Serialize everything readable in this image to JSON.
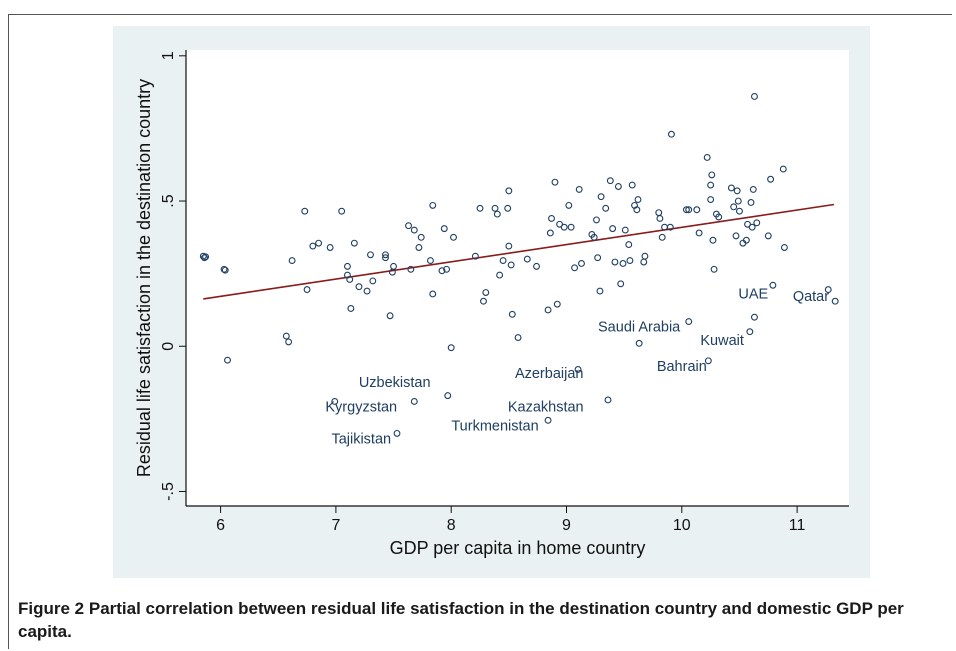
{
  "caption": {
    "label": "Figure 2",
    "text": "Partial correlation between residual life satisfaction in the destination country and domestic GDP per capita."
  },
  "colors": {
    "panel_background": "#eaf1f3",
    "marker": "#1e3e62",
    "fit_line": "#8b1a1a",
    "label_text": "#1e3e62"
  },
  "chart_data": {
    "type": "scatter",
    "title": "",
    "xlabel": "GDP per capita in home country",
    "ylabel": "Residual life satisfaction in the destination country",
    "xlim": [
      5.7,
      11.45
    ],
    "ylim": [
      -0.55,
      1.02
    ],
    "xticks": [
      6,
      7,
      8,
      9,
      10,
      11
    ],
    "xtick_labels": [
      "6",
      "7",
      "8",
      "9",
      "10",
      "11"
    ],
    "yticks": [
      -0.5,
      0,
      0.5,
      1
    ],
    "ytick_labels": [
      "-.5",
      "0",
      ".5",
      "1"
    ],
    "grid": false,
    "legend": "none",
    "fit_line": {
      "x": [
        5.85,
        11.32
      ],
      "y": [
        0.163,
        0.488
      ]
    },
    "points": [
      [
        5.85,
        0.31
      ],
      [
        5.86,
        0.305
      ],
      [
        5.87,
        0.308
      ],
      [
        6.03,
        0.265
      ],
      [
        6.04,
        0.262
      ],
      [
        6.06,
        -0.048
      ],
      [
        6.57,
        0.035
      ],
      [
        6.59,
        0.015
      ],
      [
        6.62,
        0.295
      ],
      [
        6.73,
        0.465
      ],
      [
        6.75,
        0.195
      ],
      [
        6.8,
        0.345
      ],
      [
        6.85,
        0.355
      ],
      [
        6.95,
        0.34
      ],
      [
        7.05,
        0.465
      ],
      [
        7.1,
        0.275
      ],
      [
        7.1,
        0.245
      ],
      [
        7.12,
        0.23
      ],
      [
        7.13,
        0.13
      ],
      [
        7.16,
        0.355
      ],
      [
        7.2,
        0.205
      ],
      [
        7.27,
        0.19
      ],
      [
        7.3,
        0.315
      ],
      [
        7.32,
        0.225
      ],
      [
        7.43,
        0.315
      ],
      [
        7.43,
        0.305
      ],
      [
        7.47,
        0.105
      ],
      [
        7.49,
        0.255
      ],
      [
        7.5,
        0.275
      ],
      [
        7.63,
        0.415
      ],
      [
        7.65,
        0.265
      ],
      [
        7.68,
        0.4
      ],
      [
        7.72,
        0.34
      ],
      [
        7.74,
        0.375
      ],
      [
        7.82,
        0.295
      ],
      [
        7.84,
        0.485
      ],
      [
        7.84,
        0.18
      ],
      [
        7.92,
        0.26
      ],
      [
        7.94,
        0.405
      ],
      [
        7.96,
        0.265
      ],
      [
        8.02,
        0.375
      ],
      [
        8.21,
        0.31
      ],
      [
        8.25,
        0.475
      ],
      [
        8.28,
        0.155
      ],
      [
        8.3,
        0.185
      ],
      [
        8.38,
        0.475
      ],
      [
        8.4,
        0.455
      ],
      [
        8.42,
        0.245
      ],
      [
        8.45,
        0.295
      ],
      [
        8.49,
        0.475
      ],
      [
        8.5,
        0.345
      ],
      [
        8.5,
        0.535
      ],
      [
        8.52,
        0.28
      ],
      [
        8.53,
        0.11
      ],
      [
        8.58,
        0.03
      ],
      [
        8.66,
        0.3
      ],
      [
        8.74,
        0.275
      ],
      [
        8.84,
        0.125
      ],
      [
        8.86,
        0.39
      ],
      [
        8.87,
        0.44
      ],
      [
        8.9,
        0.565
      ],
      [
        8.92,
        0.145
      ],
      [
        8.94,
        0.42
      ],
      [
        8.98,
        0.41
      ],
      [
        9.02,
        0.485
      ],
      [
        9.04,
        0.41
      ],
      [
        9.07,
        0.27
      ],
      [
        9.11,
        0.54
      ],
      [
        9.13,
        0.285
      ],
      [
        9.22,
        0.385
      ],
      [
        9.24,
        0.375
      ],
      [
        9.26,
        0.435
      ],
      [
        9.27,
        0.305
      ],
      [
        9.29,
        0.19
      ],
      [
        9.3,
        0.515
      ],
      [
        9.34,
        0.475
      ],
      [
        9.38,
        0.57
      ],
      [
        9.4,
        0.405
      ],
      [
        9.42,
        0.29
      ],
      [
        9.45,
        0.55
      ],
      [
        9.47,
        0.215
      ],
      [
        9.49,
        0.285
      ],
      [
        9.51,
        0.4
      ],
      [
        9.54,
        0.35
      ],
      [
        9.55,
        0.295
      ],
      [
        9.57,
        0.555
      ],
      [
        9.59,
        0.485
      ],
      [
        9.61,
        0.47
      ],
      [
        9.62,
        0.505
      ],
      [
        9.63,
        0.01
      ],
      [
        9.67,
        0.29
      ],
      [
        9.68,
        0.31
      ],
      [
        9.8,
        0.46
      ],
      [
        9.81,
        0.44
      ],
      [
        9.83,
        0.375
      ],
      [
        9.85,
        0.41
      ],
      [
        9.9,
        0.41
      ],
      [
        9.91,
        0.73
      ],
      [
        10.04,
        0.47
      ],
      [
        10.06,
        0.47
      ],
      [
        10.06,
        0.085
      ],
      [
        10.13,
        0.47
      ],
      [
        10.15,
        0.39
      ],
      [
        10.22,
        0.65
      ],
      [
        10.23,
        -0.05
      ],
      [
        10.25,
        0.505
      ],
      [
        10.25,
        0.555
      ],
      [
        10.26,
        0.59
      ],
      [
        10.27,
        0.365
      ],
      [
        10.28,
        0.265
      ],
      [
        10.3,
        0.455
      ],
      [
        10.32,
        0.445
      ],
      [
        10.43,
        0.545
      ],
      [
        10.45,
        0.48
      ],
      [
        10.47,
        0.38
      ],
      [
        10.48,
        0.535
      ],
      [
        10.49,
        0.5
      ],
      [
        10.5,
        0.465
      ],
      [
        10.53,
        0.355
      ],
      [
        10.56,
        0.365
      ],
      [
        10.57,
        0.42
      ],
      [
        10.59,
        0.05
      ],
      [
        10.6,
        0.495
      ],
      [
        10.61,
        0.41
      ],
      [
        10.62,
        0.54
      ],
      [
        10.63,
        0.1
      ],
      [
        10.63,
        0.86
      ],
      [
        10.65,
        0.425
      ],
      [
        10.75,
        0.38
      ],
      [
        10.77,
        0.575
      ],
      [
        10.79,
        0.21
      ],
      [
        10.88,
        0.61
      ],
      [
        10.89,
        0.34
      ],
      [
        11.27,
        0.195
      ],
      [
        11.33,
        0.155
      ],
      [
        6.99,
        -0.19
      ],
      [
        7.53,
        -0.3
      ],
      [
        7.68,
        -0.19
      ],
      [
        7.97,
        -0.17
      ],
      [
        8.0,
        -0.005
      ],
      [
        8.84,
        -0.255
      ],
      [
        9.1,
        -0.08
      ],
      [
        9.36,
        -0.185
      ]
    ],
    "annotations": [
      {
        "text": "Uzbekistan",
        "x": 7.51,
        "y": -0.14
      },
      {
        "text": "Kyrgyzstan",
        "x": 7.22,
        "y": -0.225
      },
      {
        "text": "Tajikistan",
        "x": 7.22,
        "y": -0.335
      },
      {
        "text": "Turkmenistan",
        "x": 8.38,
        "y": -0.29
      },
      {
        "text": "Azerbaijan",
        "x": 8.85,
        "y": -0.11
      },
      {
        "text": "Kazakhstan",
        "x": 8.82,
        "y": -0.225
      },
      {
        "text": "Saudi Arabia",
        "x": 9.63,
        "y": 0.05
      },
      {
        "text": "Bahrain",
        "x": 10.0,
        "y": -0.085
      },
      {
        "text": "Kuwait",
        "x": 10.35,
        "y": 0.005
      },
      {
        "text": "UAE",
        "x": 10.62,
        "y": 0.165
      },
      {
        "text": "Qatar",
        "x": 11.12,
        "y": 0.155
      }
    ]
  }
}
